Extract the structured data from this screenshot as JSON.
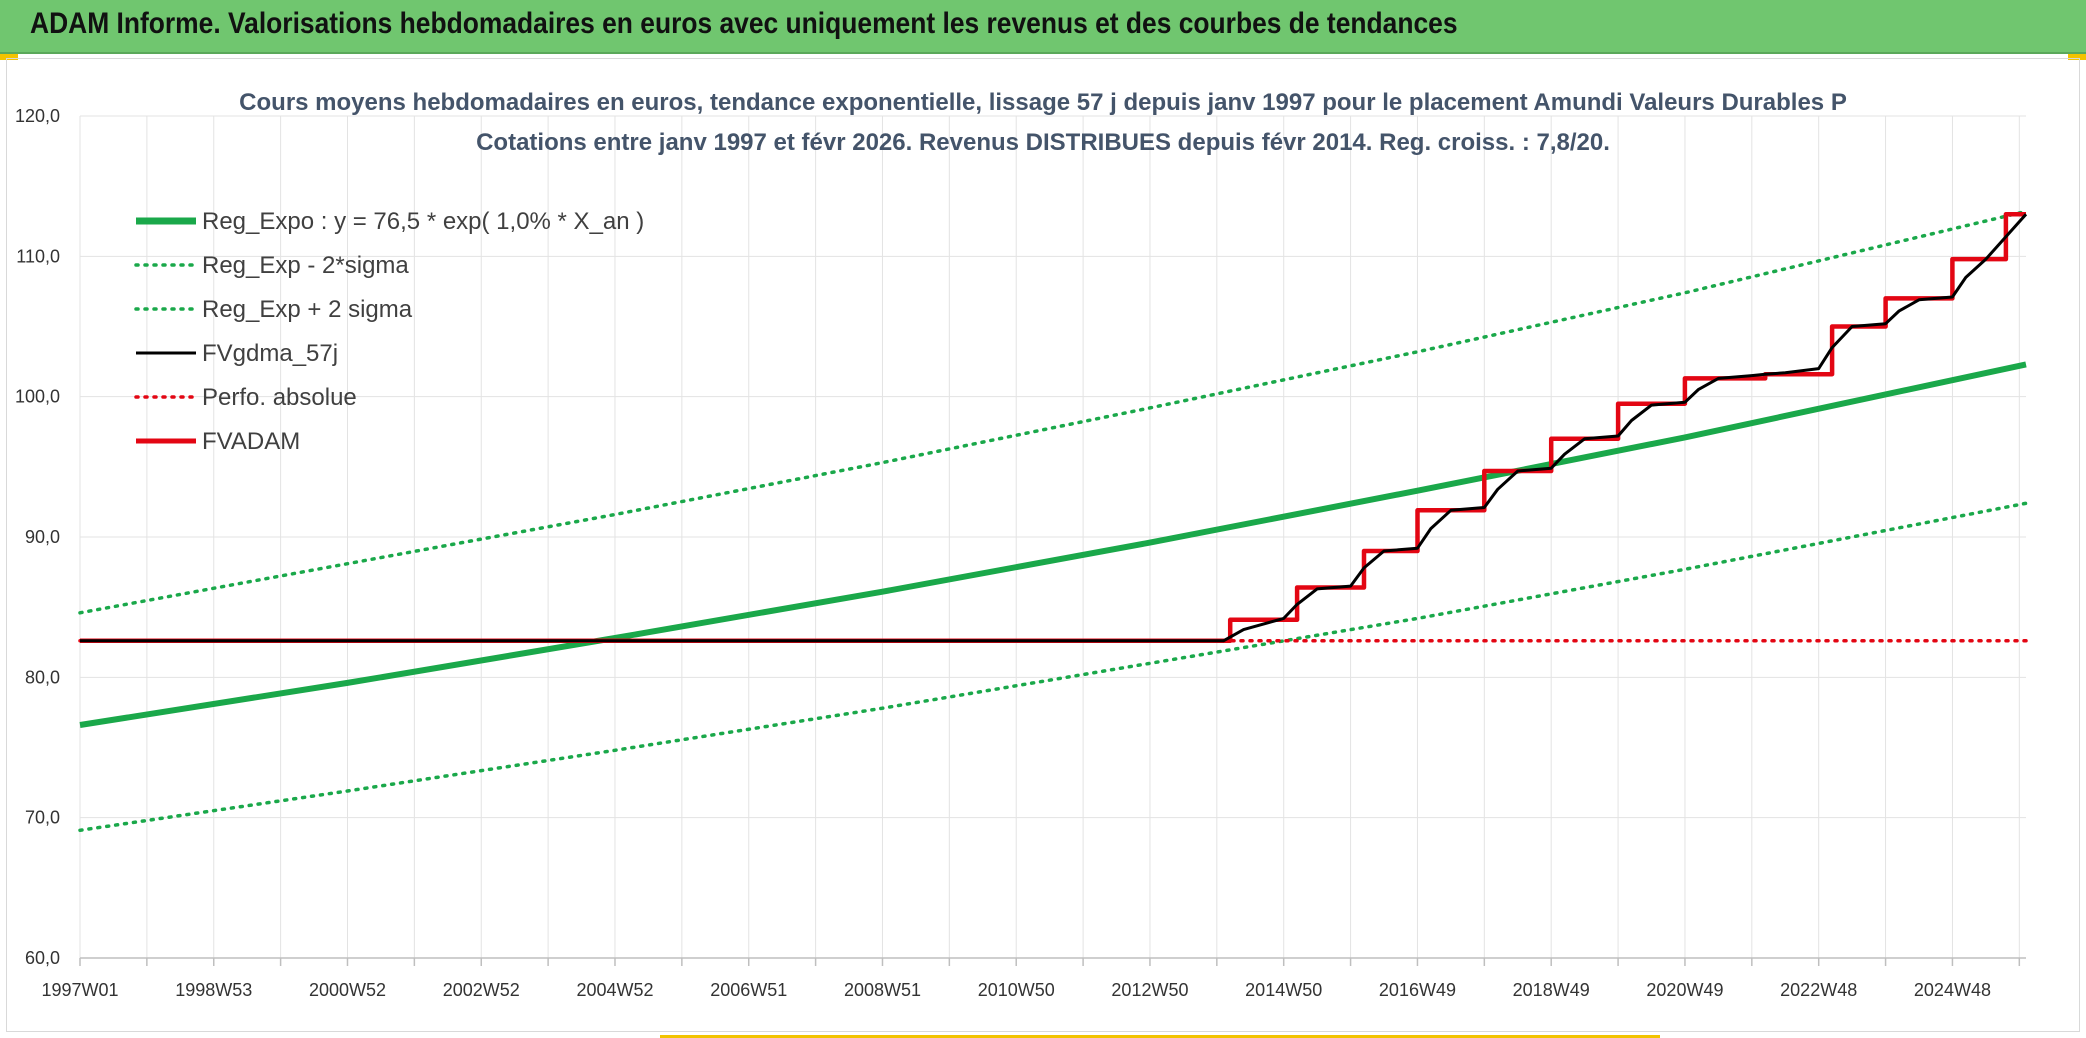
{
  "banner": {
    "title": "ADAM Informe. Valorisations hebdomadaires en euros avec uniquement les revenus et des courbes de tendances"
  },
  "chart_data": {
    "type": "line",
    "title": "Cours moyens hebdomadaires en euros, tendance exponentielle, lissage 57 j depuis janv 1997 pour le placement Amundi Valeurs Durables P",
    "subtitle": "Cotations entre janv 1997 et févr 2026. Revenus DISTRIBUES depuis févr 2014. Reg. croiss. : 7,8/20.",
    "xlabel": "",
    "ylabel": "",
    "xlim": [
      1997.0,
      2026.1
    ],
    "ylim": [
      60,
      120
    ],
    "y_ticks": [
      "60,0",
      "70,0",
      "80,0",
      "90,0",
      "100,0",
      "110,0",
      "120,0"
    ],
    "x_ticks": [
      {
        "label": "1997W01",
        "x": 1997.0
      },
      {
        "label": "1998W53",
        "x": 1999.0
      },
      {
        "label": "2000W52",
        "x": 2001.0
      },
      {
        "label": "2002W52",
        "x": 2003.0
      },
      {
        "label": "2004W52",
        "x": 2005.0
      },
      {
        "label": "2006W51",
        "x": 2007.0
      },
      {
        "label": "2008W51",
        "x": 2009.0
      },
      {
        "label": "2010W50",
        "x": 2011.0
      },
      {
        "label": "2012W50",
        "x": 2013.0
      },
      {
        "label": "2014W50",
        "x": 2015.0
      },
      {
        "label": "2016W49",
        "x": 2017.0
      },
      {
        "label": "2018W49",
        "x": 2019.0
      },
      {
        "label": "2020W49",
        "x": 2021.0
      },
      {
        "label": "2022W48",
        "x": 2023.0
      },
      {
        "label": "2024W48",
        "x": 2025.0
      }
    ],
    "grid": true,
    "legend_position": "top-left",
    "series": [
      {
        "name": "Reg_Expo : y = 76,5 * exp( 1,0% *  X_an )",
        "style": "solid-thick",
        "color": "#1aa84a",
        "x": [
          1997.0,
          2001.0,
          2005.0,
          2009.0,
          2013.0,
          2017.0,
          2021.0,
          2026.1
        ],
        "values": [
          76.6,
          79.6,
          82.8,
          86.1,
          89.6,
          93.3,
          97.1,
          102.3
        ]
      },
      {
        "name": "Reg_Exp - 2*sigma",
        "style": "dotted",
        "color": "#1aa84a",
        "x": [
          1997.0,
          2001.0,
          2005.0,
          2009.0,
          2013.0,
          2017.0,
          2021.0,
          2026.1
        ],
        "values": [
          69.1,
          71.9,
          74.8,
          77.8,
          81.0,
          84.2,
          87.7,
          92.4
        ]
      },
      {
        "name": "Reg_Exp + 2 sigma",
        "style": "dotted",
        "color": "#1aa84a",
        "x": [
          1997.0,
          2001.0,
          2005.0,
          2009.0,
          2013.0,
          2017.0,
          2021.0,
          2026.1
        ],
        "values": [
          84.6,
          88.1,
          91.6,
          95.3,
          99.2,
          103.2,
          107.4,
          113.2
        ]
      },
      {
        "name": "FVgdma_57j",
        "style": "solid",
        "color": "#000000",
        "x": [
          1997.0,
          2014.1,
          2014.4,
          2015.0,
          2015.2,
          2015.5,
          2016.0,
          2016.2,
          2016.5,
          2017.0,
          2017.2,
          2017.5,
          2018.0,
          2018.2,
          2018.5,
          2019.0,
          2019.2,
          2019.5,
          2020.0,
          2020.2,
          2020.5,
          2021.0,
          2021.2,
          2021.5,
          2022.0,
          2022.2,
          2022.5,
          2023.0,
          2023.2,
          2023.5,
          2024.0,
          2024.2,
          2024.5,
          2025.0,
          2025.2,
          2025.5,
          2026.1
        ],
        "values": [
          82.6,
          82.6,
          83.4,
          84.2,
          85.2,
          86.3,
          86.5,
          87.8,
          89.0,
          89.2,
          90.6,
          91.9,
          92.1,
          93.4,
          94.7,
          94.9,
          95.9,
          97.0,
          97.2,
          98.3,
          99.4,
          99.6,
          100.5,
          101.3,
          101.5,
          101.6,
          101.7,
          102.0,
          103.5,
          105.0,
          105.2,
          106.1,
          106.9,
          107.1,
          108.5,
          109.8,
          113.0
        ]
      },
      {
        "name": "Perfo. absolue",
        "style": "dotted",
        "color": "#e30613",
        "x": [
          1997.0,
          2026.1
        ],
        "values": [
          82.6,
          82.6
        ]
      },
      {
        "name": "FVADAM",
        "style": "step",
        "color": "#e30613",
        "x": [
          1997.0,
          2014.2,
          2014.2,
          2015.2,
          2015.2,
          2016.2,
          2016.2,
          2017.0,
          2017.0,
          2018.0,
          2018.0,
          2019.0,
          2019.0,
          2020.0,
          2020.0,
          2021.0,
          2021.0,
          2022.2,
          2022.2,
          2023.2,
          2023.2,
          2024.0,
          2024.0,
          2025.0,
          2025.0,
          2025.8,
          2025.8,
          2026.1
        ],
        "values": [
          82.6,
          82.6,
          84.1,
          84.1,
          86.4,
          86.4,
          89.0,
          89.0,
          91.9,
          91.9,
          94.7,
          94.7,
          97.0,
          97.0,
          99.5,
          99.5,
          101.3,
          101.3,
          101.6,
          101.6,
          105.0,
          105.0,
          107.0,
          107.0,
          109.8,
          109.8,
          113.0,
          113.0
        ]
      }
    ]
  }
}
